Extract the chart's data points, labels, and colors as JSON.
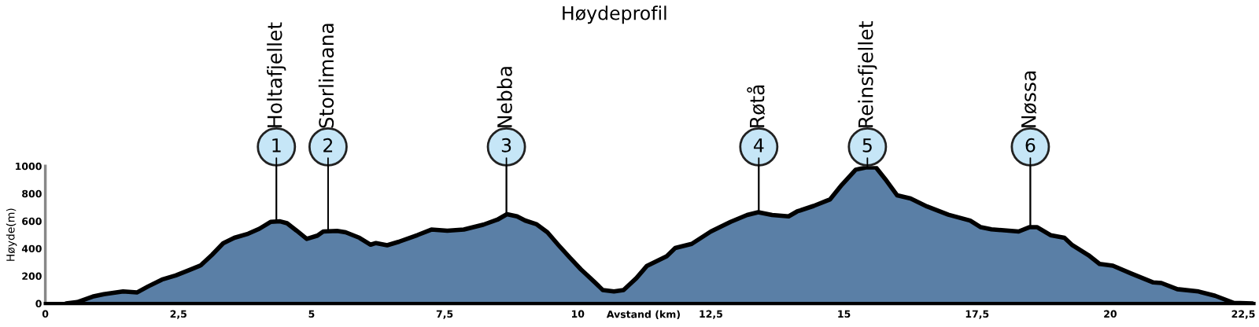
{
  "chart_data": {
    "type": "area",
    "title": "Høydeprofil",
    "xlabel": "Avstand (km)",
    "ylabel": "Høyde(m)",
    "series": [
      {
        "color": "#5a7fa6",
        "x": [
          0.39,
          0.6,
          0.89,
          1.1,
          1.46,
          1.72,
          1.93,
          2.19,
          2.45,
          2.71,
          2.92,
          3.13,
          3.34,
          3.55,
          3.81,
          4.02,
          4.23,
          4.41,
          4.54,
          4.72,
          4.91,
          5.11,
          5.22,
          5.48,
          5.64,
          5.9,
          6.11,
          6.21,
          6.42,
          6.63,
          6.99,
          7.25,
          7.55,
          7.86,
          8.23,
          8.49,
          8.67,
          8.86,
          9.01,
          9.22,
          9.43,
          9.64,
          9.85,
          10.06,
          10.32,
          10.47,
          10.68,
          10.86,
          11.1,
          11.3,
          11.67,
          11.83,
          12.14,
          12.5,
          12.87,
          13.18,
          13.39,
          13.65,
          13.96,
          14.12,
          14.43,
          14.74,
          14.96,
          15.22,
          15.41,
          15.6,
          15.8,
          16.0,
          16.25,
          16.56,
          16.96,
          17.37,
          17.57,
          17.77,
          18.28,
          18.48,
          18.63,
          18.88,
          19.14,
          19.29,
          19.59,
          19.8,
          20.05,
          20.4,
          20.81,
          20.96,
          21.26,
          21.66,
          21.97,
          22.32,
          22.67
        ],
        "values": [
          0,
          10,
          50,
          68,
          88,
          80,
          124,
          174,
          204,
          244,
          278,
          354,
          438,
          478,
          508,
          544,
          594,
          598,
          584,
          530,
          470,
          494,
          524,
          528,
          518,
          478,
          428,
          440,
          424,
          448,
          498,
          538,
          530,
          538,
          574,
          610,
          650,
          634,
          604,
          578,
          518,
          424,
          334,
          248,
          154,
          98,
          88,
          98,
          184,
          274,
          344,
          404,
          434,
          524,
          594,
          644,
          664,
          644,
          634,
          670,
          710,
          758,
          864,
          974,
          990,
          990,
          893,
          787,
          764,
          706,
          646,
          603,
          555,
          540,
          524,
          555,
          555,
          497,
          478,
          424,
          352,
          288,
          275,
          217,
          153,
          149,
          104,
          87,
          56,
          4,
          0
        ]
      }
    ],
    "xlim": [
      0,
      22.7
    ],
    "ylim": [
      0,
      1000
    ],
    "xticks": [
      0,
      {
        "value": 2.5,
        "label": "2,5"
      },
      5,
      {
        "value": 7.5,
        "label": "7,5"
      },
      10,
      {
        "value": 12.5,
        "label": "12,5"
      },
      15,
      {
        "value": 17.5,
        "label": "17,5"
      },
      20,
      {
        "value": 22.5,
        "label": "22,5"
      }
    ],
    "yticks": [
      0,
      200,
      400,
      600,
      800,
      1000
    ],
    "grid": false,
    "annotations": [
      {
        "text": "1",
        "x": 4.34,
        "y": 598
      },
      {
        "text": "Holtafjellet",
        "x": 4.34,
        "y": 598
      },
      {
        "text": "2",
        "x": 5.31,
        "y": 524
      },
      {
        "text": "Storlimana",
        "x": 5.31,
        "y": 524
      },
      {
        "text": "3",
        "x": 8.66,
        "y": 650
      },
      {
        "text": "Nebba",
        "x": 8.66,
        "y": 650
      },
      {
        "text": "4",
        "x": 13.4,
        "y": 664
      },
      {
        "text": "Røtå",
        "x": 13.4,
        "y": 664
      },
      {
        "text": "5",
        "x": 15.44,
        "y": 990
      },
      {
        "text": "Reinsfjellet",
        "x": 15.44,
        "y": 990
      },
      {
        "text": "6",
        "x": 18.5,
        "y": 555
      },
      {
        "text": "Nøssa",
        "x": 18.5,
        "y": 555
      }
    ]
  }
}
